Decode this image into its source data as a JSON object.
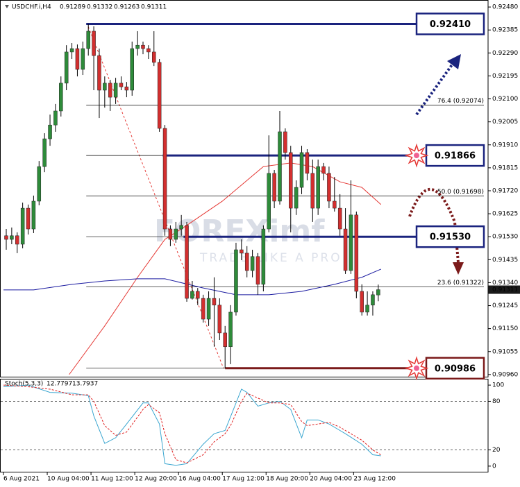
{
  "chart_data": {
    "type": "candlestick",
    "symbol": "USDCHF.i,H4",
    "categories": [
      "6 Aug 2021",
      null,
      null,
      null,
      null,
      null,
      null,
      null,
      "10 Aug 04:00",
      null,
      null,
      null,
      null,
      null,
      null,
      null,
      "11 Aug 12:00",
      null,
      null,
      null,
      null,
      null,
      null,
      null,
      "12 Aug 20:00",
      null,
      null,
      null,
      null,
      null,
      null,
      null,
      "16 Aug 04:00",
      null,
      null,
      null,
      null,
      null,
      null,
      null,
      "17 Aug 12:00",
      null,
      null,
      null,
      null,
      null,
      null,
      null,
      "18 Aug 20:00",
      null,
      null,
      null,
      null,
      null,
      null,
      null,
      "20 Aug 04:00",
      null,
      null,
      null,
      null,
      null,
      null,
      null,
      "23 Aug 12:00",
      null,
      null,
      null,
      null
    ],
    "open": [
      0.91534,
      0.91519,
      0.91534,
      0.91499,
      0.91648,
      0.91562,
      0.91677,
      0.9182,
      0.91935,
      0.91992,
      0.9205,
      0.92165,
      0.92294,
      0.92308,
      0.92222,
      0.92308,
      0.9238,
      0.92279,
      0.92136,
      0.92165,
      0.92107,
      0.92165,
      0.9215,
      0.92136,
      0.92308,
      0.92322,
      0.92308,
      0.92294,
      0.92251,
      0.91978,
      0.91562,
      0.91519,
      0.91562,
      0.91577,
      0.91275,
      0.91304,
      0.91275,
      0.91189,
      0.91275,
      0.91247,
      0.91132,
      0.91075,
      0.91218,
      0.91476,
      0.91462,
      0.9139,
      0.91448,
      0.91333,
      0.91562,
      0.91792,
      0.91677,
      0.91964,
      0.91878,
      0.91648,
      0.91734,
      0.91878,
      0.91792,
      0.91648,
      0.9182,
      0.91792,
      0.91677,
      0.91648,
      0.91562,
      0.9139,
      0.9162,
      0.91304,
      0.91218,
      0.91247,
      0.91289
    ],
    "high": [
      0.91562,
      0.91568,
      0.91548,
      0.91671,
      0.91663,
      0.917,
      0.91843,
      0.91958,
      0.92035,
      0.92079,
      0.92193,
      0.92322,
      0.92331,
      0.92325,
      0.92337,
      0.9241,
      0.924,
      0.92308,
      0.92193,
      0.92179,
      0.92187,
      0.92193,
      0.9217,
      0.92337,
      0.9238,
      0.92337,
      0.92322,
      0.9238,
      0.92265,
      0.91992,
      0.91577,
      0.91591,
      0.9162,
      0.91591,
      0.91347,
      0.91318,
      0.9129,
      0.91304,
      0.91362,
      0.91275,
      0.91161,
      0.91247,
      0.91505,
      0.91519,
      0.91491,
      0.91476,
      0.91462,
      0.91577,
      0.91949,
      0.91806,
      0.9205,
      0.91978,
      0.91906,
      0.91763,
      0.91906,
      0.91892,
      0.91849,
      0.91849,
      0.91835,
      0.9182,
      0.91777,
      0.91706,
      0.91648,
      0.91763,
      0.91634,
      0.91333,
      0.91304,
      0.91304,
      0.91332
    ],
    "low": [
      0.91476,
      0.91499,
      0.91462,
      0.91482,
      0.91539,
      0.91545,
      0.9166,
      0.91797,
      0.91906,
      0.91964,
      0.92027,
      0.92136,
      0.92265,
      0.92193,
      0.92199,
      0.92279,
      0.92136,
      0.92021,
      0.92064,
      0.9205,
      0.92079,
      0.92136,
      0.92107,
      0.92113,
      0.92279,
      0.92285,
      0.92265,
      0.92236,
      0.91964,
      0.91534,
      0.91491,
      0.91505,
      0.91534,
      0.91261,
      0.9127,
      0.91247,
      0.91175,
      0.91161,
      0.91075,
      0.91103,
      0.90986,
      0.91003,
      0.91204,
      0.91433,
      0.91362,
      0.91362,
      0.9129,
      0.91304,
      0.91548,
      0.91648,
      0.91663,
      0.91849,
      0.91548,
      0.9162,
      0.91706,
      0.91763,
      0.91591,
      0.9162,
      0.91763,
      0.91648,
      0.91634,
      0.91534,
      0.91376,
      0.91376,
      0.91275,
      0.91204,
      0.91204,
      0.91204,
      0.91263
    ],
    "close": [
      0.91519,
      0.91534,
      0.91499,
      0.91648,
      0.91562,
      0.91677,
      0.9182,
      0.91935,
      0.91992,
      0.9205,
      0.92165,
      0.92294,
      0.92308,
      0.92222,
      0.92308,
      0.9238,
      0.92279,
      0.92136,
      0.92165,
      0.92107,
      0.92165,
      0.9215,
      0.92136,
      0.92308,
      0.92322,
      0.92308,
      0.92294,
      0.92251,
      0.91978,
      0.91562,
      0.91519,
      0.91562,
      0.91577,
      0.91275,
      0.91304,
      0.91275,
      0.91189,
      0.91275,
      0.91247,
      0.91132,
      0.91075,
      0.91218,
      0.91476,
      0.91462,
      0.9139,
      0.91448,
      0.91333,
      0.91562,
      0.91792,
      0.91677,
      0.91964,
      0.91878,
      0.91648,
      0.91734,
      0.91878,
      0.91792,
      0.91648,
      0.9182,
      0.91792,
      0.91677,
      0.91648,
      0.91562,
      0.9139,
      0.9162,
      0.91304,
      0.91218,
      0.91247,
      0.9129,
      0.91311
    ],
    "up_color": "#2e8b3a",
    "down_color": "#d32f2f",
    "grid": false,
    "ylim": [
      0.90951,
      0.92509
    ],
    "yticks": [
      {
        "value": 0.9248,
        "label": "0.92480"
      },
      0.92385,
      {
        "value": 0.9229,
        "label": "0.92290"
      },
      0.92195,
      {
        "value": 0.921,
        "label": "0.92100"
      },
      0.92005,
      {
        "value": 0.9191,
        "label": "0.91910"
      },
      0.91815,
      {
        "value": 0.9172,
        "label": "0.91720"
      },
      0.91625,
      {
        "value": 0.9153,
        "label": "0.91530"
      },
      0.91435,
      {
        "value": 0.9134,
        "label": "0.91340"
      },
      0.91245,
      {
        "value": 0.9115,
        "label": "0.91150"
      },
      0.91055,
      {
        "value": 0.9096,
        "label": "0.90960"
      }
    ],
    "moving_averages": [
      {
        "color": "#e53935",
        "x": [
          11.5,
          18,
          24,
          29,
          33,
          39.5,
          47,
          52,
          56,
          61,
          65,
          68.5
        ],
        "values": [
          0.9096,
          0.91161,
          0.91362,
          0.91519,
          0.91577,
          0.91677,
          0.9182,
          0.91835,
          0.9182,
          0.91757,
          0.91734,
          0.91663
        ]
      },
      {
        "color": "#1a1aa0",
        "x": [
          -0.5,
          5,
          12,
          18,
          24,
          29,
          36,
          42,
          48,
          54,
          60,
          65,
          68.5
        ],
        "values": [
          0.9131,
          0.9131,
          0.91333,
          0.91347,
          0.91356,
          0.91356,
          0.91318,
          0.9129,
          0.9129,
          0.91304,
          0.91333,
          0.91362,
          0.91396
        ]
      }
    ],
    "fib_levels": [
      {
        "value": 0.92074,
        "label": "76.4 (0.92074)"
      },
      {
        "value": 0.91698,
        "label": "50.0 (0.91698)"
      },
      {
        "value": 0.91322,
        "label": "23.6 (0.91322)"
      }
    ],
    "levels": [
      {
        "value": 0.9241,
        "label": "0.92410",
        "color": "#1a237e"
      },
      {
        "value": 0.91866,
        "label": "0.91866",
        "color": "#1a237e"
      },
      {
        "value": 0.9153,
        "label": "0.91530",
        "color": "#1a237e"
      },
      {
        "value": 0.90986,
        "label": "0.90986",
        "color": "#7b1a1a"
      }
    ],
    "watermark": {
      "brand": "FOREXimf",
      "tagline": "TRADE LIKE A PRO"
    },
    "indicator": {
      "type": "line",
      "title": "Stoch(5,3,3)",
      "ylim": [
        -7.8,
        107.8
      ],
      "yticks": [
        100,
        80,
        20,
        0
      ],
      "x": [
        -0.5,
        4,
        8,
        12,
        15,
        16,
        18,
        20,
        22,
        25,
        26,
        28,
        29,
        31,
        33,
        36,
        38,
        40,
        41,
        43,
        44,
        46,
        48,
        50,
        52,
        54,
        55,
        57,
        59,
        61,
        62,
        65,
        67,
        68.5
      ],
      "series": [
        {
          "color": "#3aa6d0",
          "values": [
            98,
            100,
            91,
            90,
            87,
            62,
            28,
            35,
            52,
            78,
            78,
            52,
            3,
            1,
            3,
            27,
            40,
            44,
            61,
            95,
            91,
            74,
            78,
            80,
            70,
            35,
            57,
            57,
            52,
            44,
            40,
            27,
            14,
            12.7797
          ]
        },
        {
          "color": "#e02020",
          "values": [
            100,
            98,
            95,
            88,
            88,
            80,
            50,
            38,
            42,
            70,
            76,
            66,
            40,
            8,
            4,
            14,
            30,
            40,
            50,
            80,
            90,
            84,
            78,
            78,
            76,
            55,
            50,
            52,
            54,
            48,
            44,
            32,
            20,
            13.7937
          ]
        }
      ]
    }
  }
}
